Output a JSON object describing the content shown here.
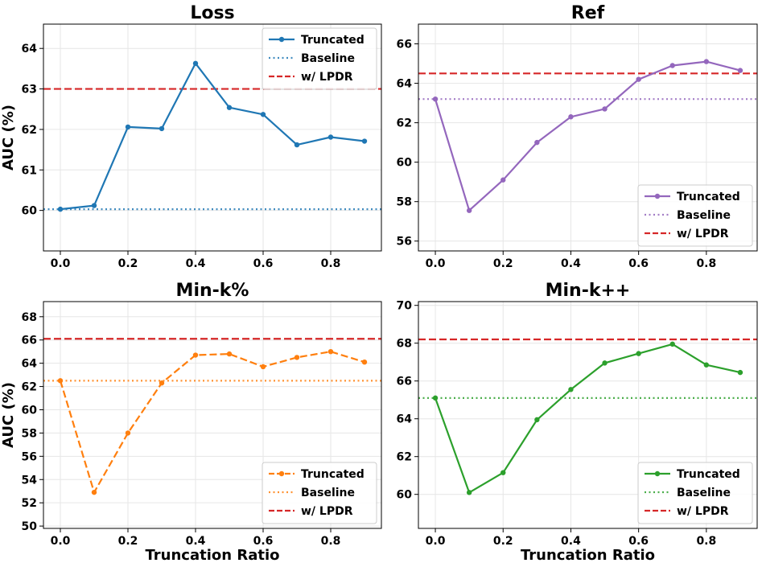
{
  "chart_data": [
    {
      "type": "line",
      "title": "Loss",
      "xlabel": "",
      "ylabel": "AUC (%)",
      "xlim": [
        -0.05,
        0.95
      ],
      "ylim": [
        59.0,
        64.6
      ],
      "xticks": [
        "0.0",
        "0.2",
        "0.4",
        "0.6",
        "0.8"
      ],
      "yticks": [
        "60",
        "61",
        "62",
        "63",
        "64"
      ],
      "x": [
        0.0,
        0.1,
        0.2,
        0.3,
        0.4,
        0.5,
        0.6,
        0.7,
        0.8,
        0.9
      ],
      "color": "#1f77b4",
      "series": [
        {
          "name": "Truncated",
          "style": "solid",
          "values": [
            60.03,
            60.12,
            62.06,
            62.02,
            63.63,
            62.54,
            62.37,
            61.62,
            61.81,
            61.71
          ]
        },
        {
          "name": "Baseline",
          "style": "dotted",
          "value": 60.03
        },
        {
          "name": "w/ LPDR",
          "style": "dashed",
          "value": 63.0,
          "color": "#d62728"
        }
      ],
      "legend": "top-right"
    },
    {
      "type": "line",
      "title": "Ref",
      "xlabel": "",
      "ylabel": "",
      "xlim": [
        -0.05,
        0.95
      ],
      "ylim": [
        55.5,
        67.0
      ],
      "xticks": [
        "0.0",
        "0.2",
        "0.4",
        "0.6",
        "0.8"
      ],
      "yticks": [
        "56",
        "58",
        "60",
        "62",
        "64",
        "66"
      ],
      "x": [
        0.0,
        0.1,
        0.2,
        0.3,
        0.4,
        0.5,
        0.6,
        0.7,
        0.8,
        0.9
      ],
      "color": "#9467bd",
      "series": [
        {
          "name": "Truncated",
          "style": "solid",
          "values": [
            63.2,
            57.55,
            59.1,
            61.0,
            62.3,
            62.7,
            64.2,
            64.9,
            65.1,
            64.65
          ]
        },
        {
          "name": "Baseline",
          "style": "dotted",
          "value": 63.2
        },
        {
          "name": "w/ LPDR",
          "style": "dashed",
          "value": 64.5,
          "color": "#d62728"
        }
      ],
      "legend": "bottom-right"
    },
    {
      "type": "line",
      "title": "Min-k%",
      "xlabel": "Truncation Ratio",
      "ylabel": "AUC (%)",
      "xlim": [
        -0.05,
        0.95
      ],
      "ylim": [
        49.8,
        69.3
      ],
      "xticks": [
        "0.0",
        "0.2",
        "0.4",
        "0.6",
        "0.8"
      ],
      "yticks": [
        "50",
        "52",
        "54",
        "56",
        "58",
        "60",
        "62",
        "64",
        "66",
        "68"
      ],
      "x": [
        0.0,
        0.1,
        0.2,
        0.3,
        0.4,
        0.5,
        0.6,
        0.7,
        0.8,
        0.9
      ],
      "color": "#ff7f0e",
      "series": [
        {
          "name": "Truncated",
          "style": "dashed-line",
          "values": [
            62.5,
            52.9,
            58.0,
            62.3,
            64.7,
            64.8,
            63.7,
            64.5,
            65.0,
            64.1
          ]
        },
        {
          "name": "Baseline",
          "style": "dotted",
          "value": 62.5
        },
        {
          "name": "w/ LPDR",
          "style": "dashed",
          "value": 66.1,
          "color": "#d62728"
        }
      ],
      "legend": "bottom-right"
    },
    {
      "type": "line",
      "title": "Min-k++",
      "xlabel": "Truncation Ratio",
      "ylabel": "",
      "xlim": [
        -0.05,
        0.95
      ],
      "ylim": [
        58.2,
        70.2
      ],
      "xticks": [
        "0.0",
        "0.2",
        "0.4",
        "0.6",
        "0.8"
      ],
      "yticks": [
        "60",
        "62",
        "64",
        "66",
        "68",
        "70"
      ],
      "x": [
        0.0,
        0.1,
        0.2,
        0.3,
        0.4,
        0.5,
        0.6,
        0.7,
        0.8,
        0.9
      ],
      "color": "#2ca02c",
      "series": [
        {
          "name": "Truncated",
          "style": "solid",
          "values": [
            65.1,
            60.1,
            61.15,
            63.95,
            65.55,
            66.95,
            67.45,
            67.95,
            66.85,
            66.45
          ]
        },
        {
          "name": "Baseline",
          "style": "dotted",
          "value": 65.1
        },
        {
          "name": "w/ LPDR",
          "style": "dashed",
          "value": 68.2,
          "color": "#d62728"
        }
      ],
      "legend": "bottom-right"
    }
  ]
}
